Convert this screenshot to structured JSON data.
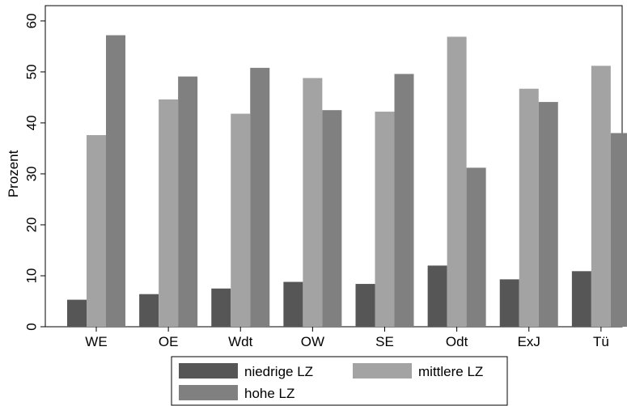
{
  "chart_data": {
    "type": "bar",
    "categories": [
      "WE",
      "OE",
      "Wdt",
      "OW",
      "SE",
      "Odt",
      "ExJ",
      "Tü"
    ],
    "series": [
      {
        "name": "niedrige LZ",
        "values": [
          5.3,
          6.4,
          7.5,
          8.8,
          8.4,
          12.0,
          9.3,
          10.9
        ],
        "color": "#565656"
      },
      {
        "name": "mittlere LZ",
        "values": [
          37.6,
          44.6,
          41.8,
          48.8,
          42.2,
          56.9,
          46.7,
          51.2
        ],
        "color": "#a3a3a3"
      },
      {
        "name": "hohe LZ",
        "values": [
          57.2,
          49.1,
          50.8,
          42.5,
          49.6,
          31.2,
          44.1,
          38.0
        ],
        "color": "#808080"
      }
    ],
    "ylabel": "Prozent",
    "ylim": [
      0,
      63
    ],
    "yticks": [
      0,
      10,
      20,
      30,
      40,
      50,
      60
    ],
    "grid": false,
    "legend_position": "bottom"
  }
}
